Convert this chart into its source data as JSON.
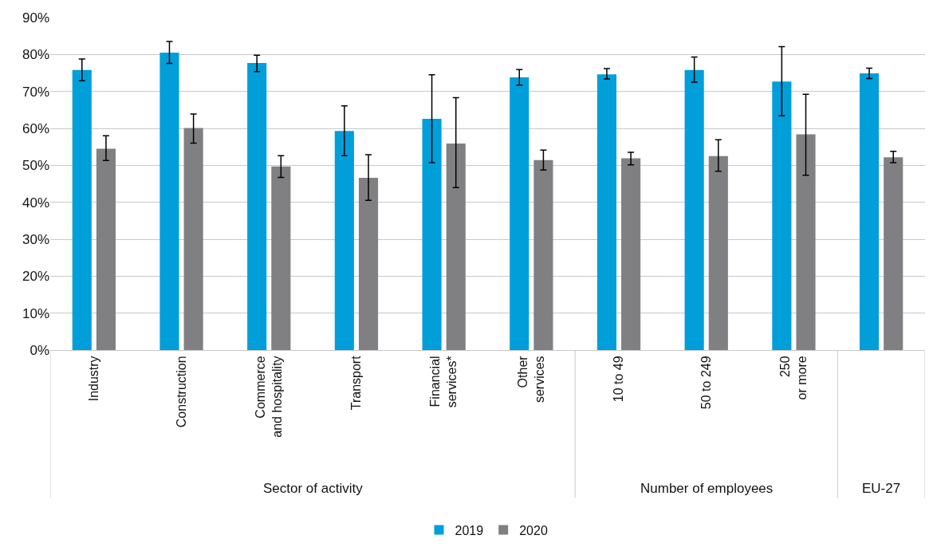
{
  "chart_data": {
    "type": "bar",
    "categories": [
      "Industry",
      "Construction",
      "Commerce\nand hospitality",
      "Transport",
      "Financial\nservices*",
      "Other\nservices",
      "10 to 49",
      "50 to 249",
      "250\nor more",
      null
    ],
    "series": [
      {
        "name": "2019",
        "color": "#009fda",
        "values": [
          75.8,
          80.5,
          77.7,
          59.3,
          62.6,
          73.8,
          74.6,
          75.8,
          72.7,
          74.9
        ],
        "errors": [
          [
            72.9,
            78.8
          ],
          [
            77.6,
            83.5
          ],
          [
            75.4,
            79.8
          ],
          [
            52.6,
            66.1
          ],
          [
            50.7,
            74.5
          ],
          [
            71.7,
            75.9
          ],
          [
            73.4,
            76.2
          ],
          [
            72.5,
            79.3
          ],
          [
            63.4,
            82.1
          ],
          [
            73.5,
            76.3
          ]
        ]
      },
      {
        "name": "2020",
        "color": "#808083",
        "values": [
          54.5,
          60.1,
          49.7,
          46.6,
          55.9,
          51.4,
          51.9,
          52.5,
          58.4,
          52.2
        ],
        "errors": [
          [
            51.3,
            58.0
          ],
          [
            56.0,
            63.9
          ],
          [
            46.7,
            52.6
          ],
          [
            40.5,
            52.9
          ],
          [
            44.0,
            68.3
          ],
          [
            48.7,
            54.1
          ],
          [
            50.1,
            53.5
          ],
          [
            48.4,
            56.9
          ],
          [
            47.3,
            69.2
          ],
          [
            50.7,
            53.8
          ]
        ]
      }
    ],
    "ylim": [
      0,
      90
    ],
    "yticks": [
      {
        "value": 0,
        "label": "0%"
      },
      {
        "value": 10,
        "label": "10%"
      },
      {
        "value": 20,
        "label": "20%"
      },
      {
        "value": 30,
        "label": "30%"
      },
      {
        "value": 40,
        "label": "40%"
      },
      {
        "value": 50,
        "label": "50%"
      },
      {
        "value": 60,
        "label": "60%"
      },
      {
        "value": 70,
        "label": "70%"
      },
      {
        "value": 80,
        "label": "80%"
      },
      {
        "value": 90,
        "label": "90%"
      }
    ],
    "grid": "y",
    "legend": "bottom",
    "annotations": [
      "Sector of activity",
      "Number of employees",
      "EU-27"
    ]
  }
}
